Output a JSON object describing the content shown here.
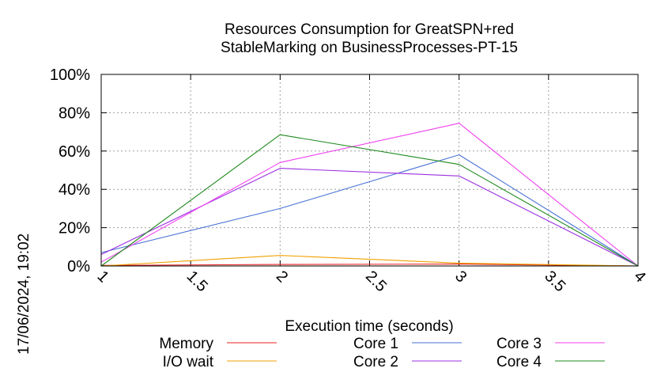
{
  "chart_data": {
    "type": "line",
    "title": "Resources Consumption for GreatSPN+red",
    "subtitle": "StableMarking on BusinessProcesses-PT-15",
    "xlabel": "Execution time (seconds)",
    "ylabel": "",
    "xlim": [
      1,
      4
    ],
    "ylim": [
      0,
      100
    ],
    "xticks": [
      "1",
      "1.5",
      "2",
      "2.5",
      "3",
      "3.5",
      "4"
    ],
    "yticks": [
      "0%",
      "20%",
      "40%",
      "60%",
      "80%",
      "100%"
    ],
    "grid": true,
    "legend_position": "bottom",
    "timestamp": "17/06/2024, 19:02",
    "series": [
      {
        "name": "Memory",
        "color": "#e8231f",
        "x": [
          1,
          2,
          3,
          4
        ],
        "y": [
          0.3,
          0.8,
          1.0,
          0
        ]
      },
      {
        "name": "I/O wait",
        "color": "#f0a000",
        "x": [
          1,
          2,
          3,
          4
        ],
        "y": [
          0,
          5.5,
          1.5,
          0
        ]
      },
      {
        "name": "Core 1",
        "color": "#4a72d6",
        "x": [
          1,
          2,
          3,
          4
        ],
        "y": [
          7,
          30,
          58,
          0
        ]
      },
      {
        "name": "Core 2",
        "color": "#9b30e0",
        "x": [
          1,
          2,
          3,
          4
        ],
        "y": [
          6,
          51,
          47,
          0
        ]
      },
      {
        "name": "Core 3",
        "color": "#f040f0",
        "x": [
          1,
          2,
          3,
          4
        ],
        "y": [
          2,
          54,
          74.5,
          0
        ]
      },
      {
        "name": "Core 4",
        "color": "#1e8a1e",
        "x": [
          1,
          2,
          3,
          4
        ],
        "y": [
          0,
          68.5,
          53,
          0
        ]
      }
    ]
  }
}
